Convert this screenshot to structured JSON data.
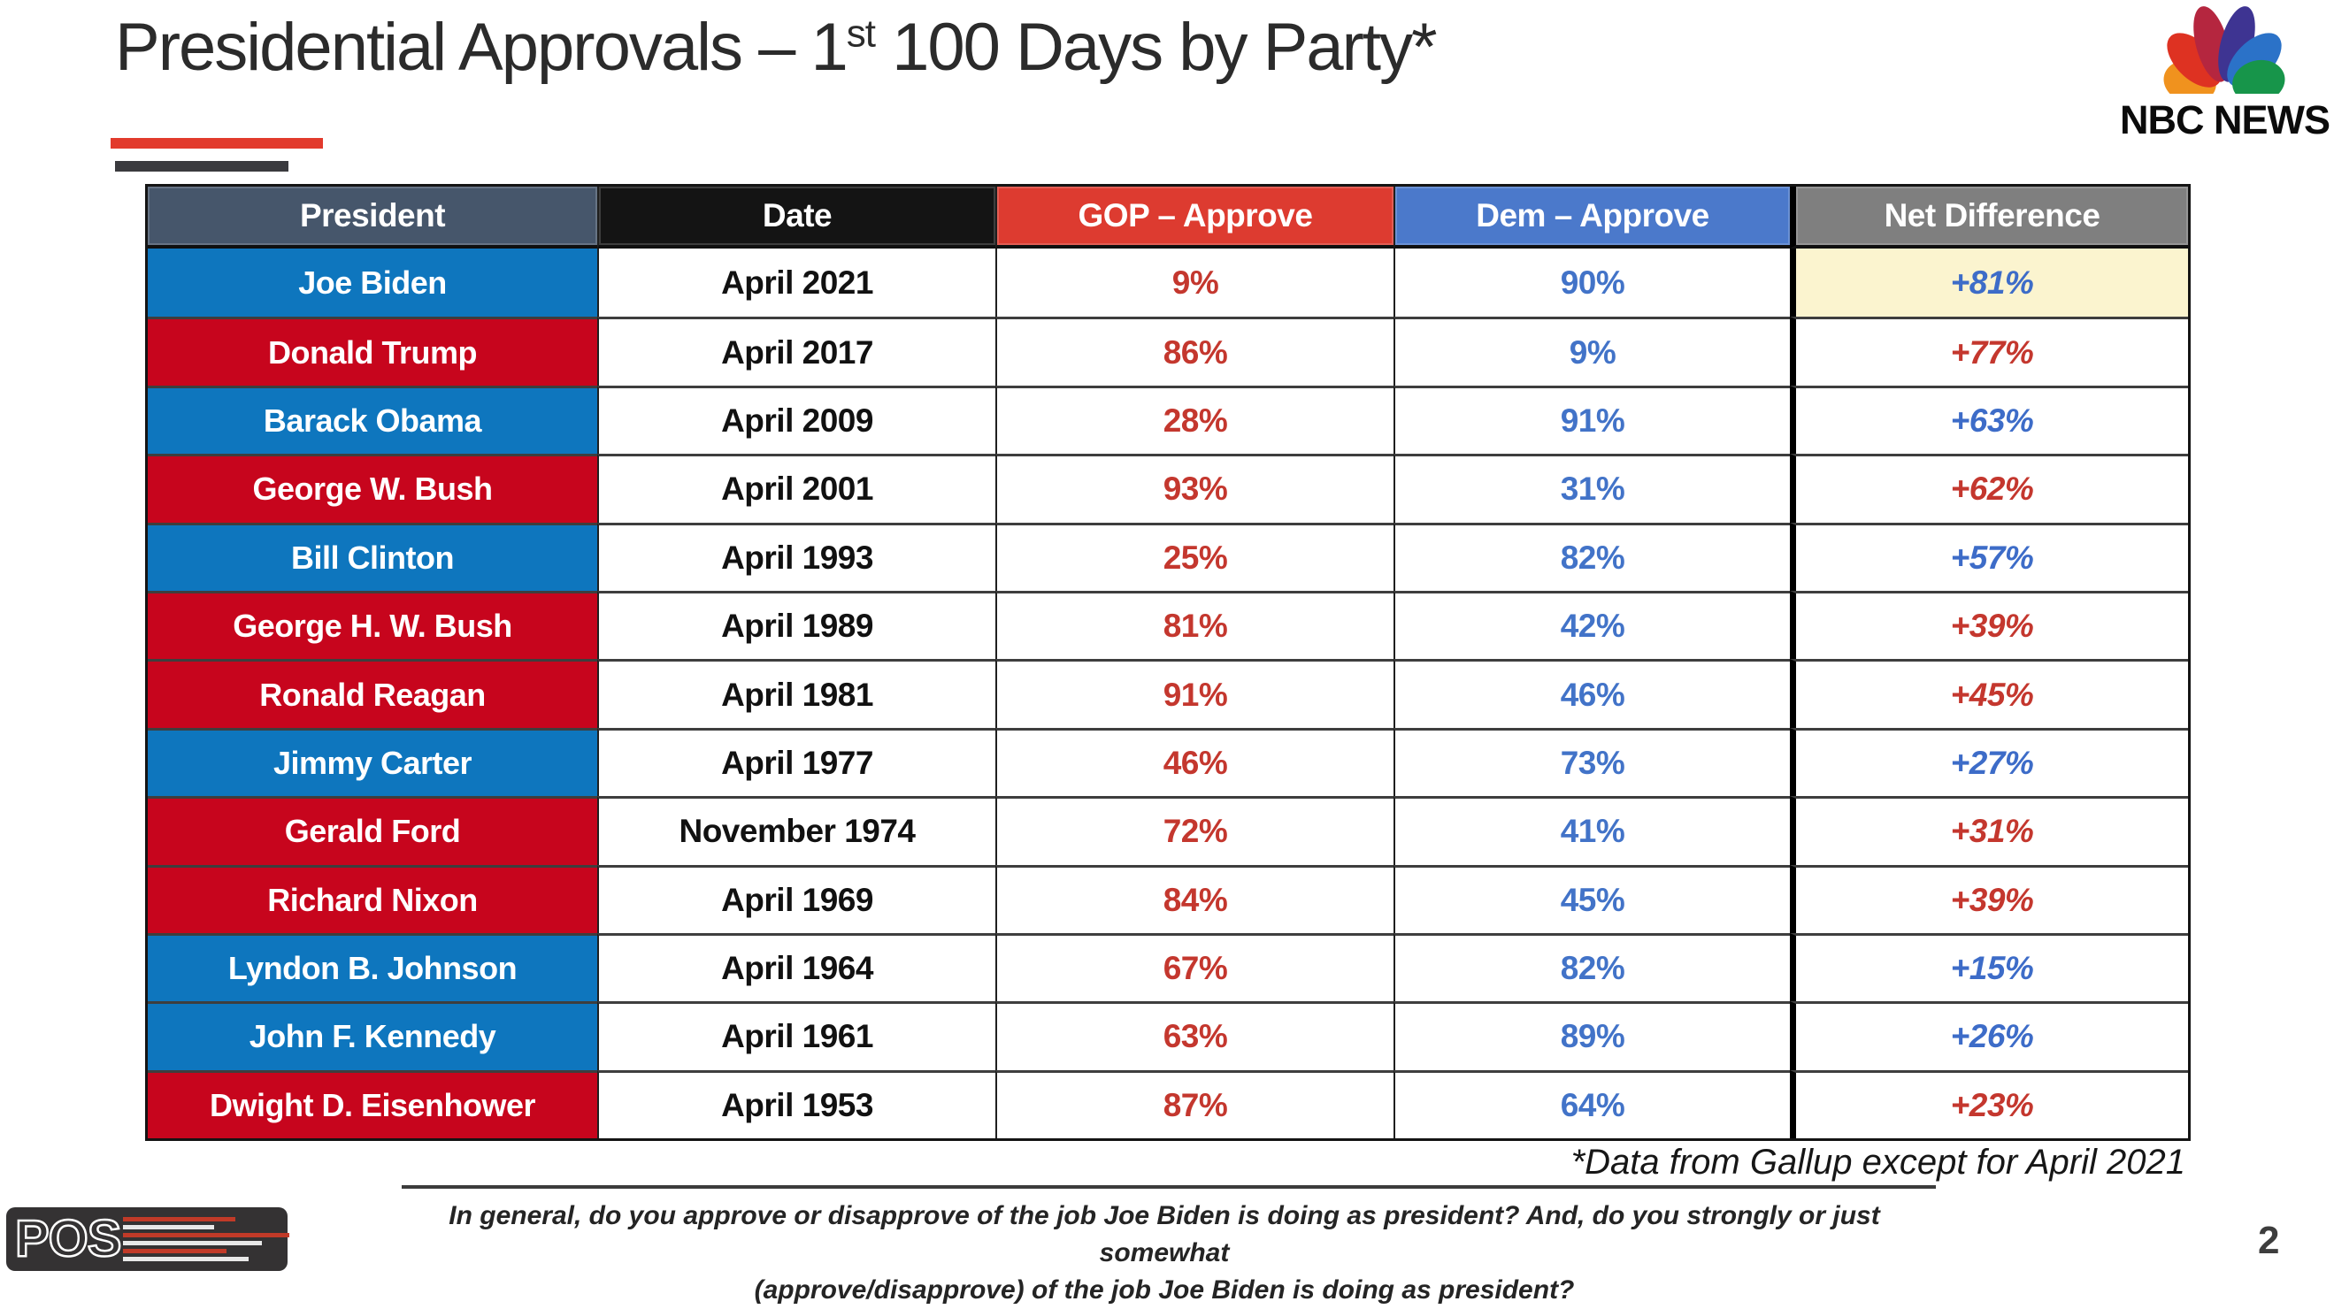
{
  "slide": {
    "title_main": "Presidential Approvals – 1",
    "title_sup": "st",
    "title_rest": " 100 Days by Party*",
    "source_note": "*Data from Gallup except for April 2021",
    "question_lines": [
      "In general, do you approve or disapprove of the job Joe Biden is doing as president? And, do you strongly or just somewhat",
      "(approve/disapprove) of the job Joe Biden is doing as president?"
    ],
    "page_number": "2"
  },
  "logos": {
    "nbc_label": "NBC NEWS",
    "nbc_peacock_colors": [
      "#F0921E",
      "#DE3222",
      "#B5263F",
      "#3E3492",
      "#2B72C8",
      "#17954A"
    ],
    "pos_label": "POS",
    "pos_bar_red": "#C13A28",
    "pos_bar_white": "#E8E8E8"
  },
  "table": {
    "headers": [
      {
        "key": "president",
        "label": "President",
        "bg": "#46566B"
      },
      {
        "key": "date",
        "label": "Date",
        "bg": "#141414"
      },
      {
        "key": "gop-approve",
        "label": "GOP – Approve",
        "bg": "#DD3B30"
      },
      {
        "key": "dem-approve",
        "label": "Dem – Approve",
        "bg": "#4B79CB"
      },
      {
        "key": "net-difference",
        "label": "Net Difference",
        "bg": "#7F7F7F"
      }
    ],
    "colors": {
      "dem_bg": "#0E76BE",
      "rep_bg": "#C7051D",
      "date_text": "#111111",
      "gop_text": "#C4372E",
      "dem_text": "#4273C8",
      "net_red": "#C4372E",
      "net_blue": "#3D6CC8",
      "highlight": "#FBF4CF"
    },
    "rows": [
      {
        "president": "Joe Biden",
        "party": "D",
        "date": "April 2021",
        "gop": "9%",
        "dem": "90%",
        "net": "+81%",
        "net_highlight": true
      },
      {
        "president": "Donald Trump",
        "party": "R",
        "date": "April 2017",
        "gop": "86%",
        "dem": "9%",
        "net": "+77%",
        "net_highlight": false
      },
      {
        "president": "Barack Obama",
        "party": "D",
        "date": "April 2009",
        "gop": "28%",
        "dem": "91%",
        "net": "+63%",
        "net_highlight": false
      },
      {
        "president": "George W. Bush",
        "party": "R",
        "date": "April 2001",
        "gop": "93%",
        "dem": "31%",
        "net": "+62%",
        "net_highlight": false
      },
      {
        "president": "Bill Clinton",
        "party": "D",
        "date": "April 1993",
        "gop": "25%",
        "dem": "82%",
        "net": "+57%",
        "net_highlight": false
      },
      {
        "president": "George H. W. Bush",
        "party": "R",
        "date": "April 1989",
        "gop": "81%",
        "dem": "42%",
        "net": "+39%",
        "net_highlight": false
      },
      {
        "president": "Ronald Reagan",
        "party": "R",
        "date": "April 1981",
        "gop": "91%",
        "dem": "46%",
        "net": "+45%",
        "net_highlight": false
      },
      {
        "president": "Jimmy Carter",
        "party": "D",
        "date": "April 1977",
        "gop": "46%",
        "dem": "73%",
        "net": "+27%",
        "net_highlight": false
      },
      {
        "president": "Gerald Ford",
        "party": "R",
        "date": "November 1974",
        "gop": "72%",
        "dem": "41%",
        "net": "+31%",
        "net_highlight": false
      },
      {
        "president": "Richard Nixon",
        "party": "R",
        "date": "April 1969",
        "gop": "84%",
        "dem": "45%",
        "net": "+39%",
        "net_highlight": false
      },
      {
        "president": "Lyndon B. Johnson",
        "party": "D",
        "date": "April 1964",
        "gop": "67%",
        "dem": "82%",
        "net": "+15%",
        "net_highlight": false
      },
      {
        "president": "John F. Kennedy",
        "party": "D",
        "date": "April 1961",
        "gop": "63%",
        "dem": "89%",
        "net": "+26%",
        "net_highlight": false
      },
      {
        "president": "Dwight D. Eisenhower",
        "party": "R",
        "date": "April 1953",
        "gop": "87%",
        "dem": "64%",
        "net": "+23%",
        "net_highlight": false
      }
    ]
  }
}
